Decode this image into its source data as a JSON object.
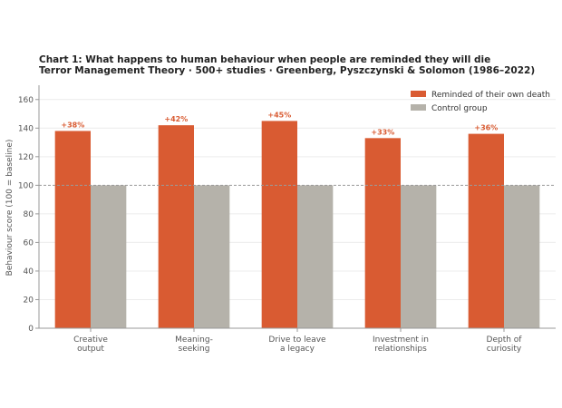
{
  "chart_data": {
    "type": "bar",
    "title": "Chart 1: What happens to human behaviour when people are reminded they will die",
    "subtitle": "Terror Management Theory · 500+ studies · Greenberg, Pyszczynski & Solomon (1986–2022)",
    "xlabel": "",
    "ylabel": "Behaviour score (100 = baseline)",
    "ylim": [
      0,
      170
    ],
    "yticks": [
      0,
      20,
      40,
      60,
      80,
      100,
      120,
      140,
      160
    ],
    "baseline": 100,
    "grid": true,
    "legend_position": "top-right",
    "categories": [
      [
        "Creative",
        "output"
      ],
      [
        "Meaning-",
        "seeking"
      ],
      [
        "Drive to leave",
        "a legacy"
      ],
      [
        "Investment in",
        "relationships"
      ],
      [
        "Depth of",
        "curiosity"
      ]
    ],
    "series": [
      {
        "name": "Reminded of their own death",
        "color": "#d95b32",
        "values": [
          138,
          142,
          145,
          133,
          136
        ]
      },
      {
        "name": "Control group",
        "color": "#b5b2aa",
        "values": [
          100,
          100,
          100,
          100,
          100
        ]
      }
    ],
    "data_labels": [
      "+38%",
      "+42%",
      "+45%",
      "+33%",
      "+36%"
    ]
  }
}
